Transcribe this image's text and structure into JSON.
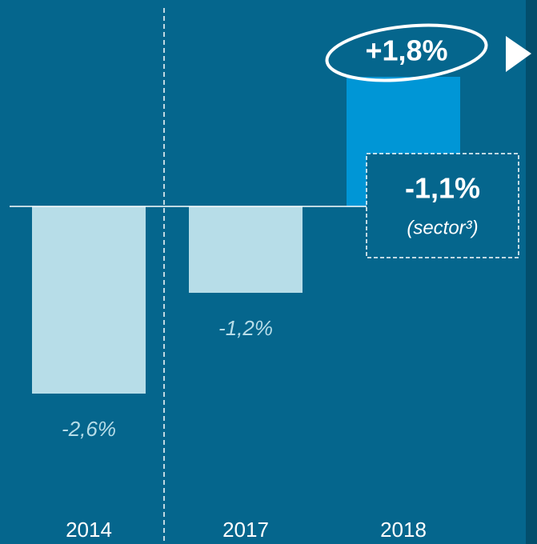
{
  "chart_data": {
    "type": "bar",
    "categories": [
      "2014",
      "2017",
      "2018"
    ],
    "values": [
      -2.6,
      -1.2,
      1.8
    ],
    "value_labels": [
      "-2,6%",
      "-1,2%",
      "+1,8%"
    ],
    "colors": [
      "#b7dde8",
      "#b7dde8",
      "#0096d6"
    ],
    "annotation": {
      "label": "-1,1%",
      "sublabel": "(sector³)"
    }
  }
}
